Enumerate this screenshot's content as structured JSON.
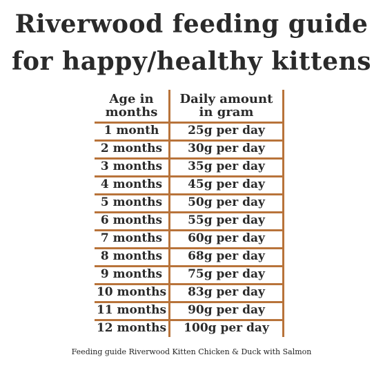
{
  "title": {
    "line1": "Riverwood feeding guide",
    "line2": "for happy/healthy kittens"
  },
  "table": {
    "header_age": "Age in\nmonths",
    "header_amount": "Daily amount\nin gram",
    "rows": [
      {
        "age": "1 month",
        "amount": "25g per day"
      },
      {
        "age": "2 months",
        "amount": "30g per day"
      },
      {
        "age": "3 months",
        "amount": "35g per day"
      },
      {
        "age": "4 months",
        "amount": "45g per day"
      },
      {
        "age": "5 months",
        "amount": "50g per day"
      },
      {
        "age": "6 months",
        "amount": "55g per day"
      },
      {
        "age": "7 months",
        "amount": "60g per day"
      },
      {
        "age": "8 months",
        "amount": "68g per day"
      },
      {
        "age": "9 months",
        "amount": "75g per day"
      },
      {
        "age": "10 months",
        "amount": "83g per day"
      },
      {
        "age": "11 months",
        "amount": "90g per day"
      },
      {
        "age": "12 months",
        "amount": "100g per day"
      }
    ]
  },
  "caption": "Feeding guide Riverwood Kitten  Chicken & Duck with Salmon",
  "colors": {
    "rule": "#b8733a",
    "text": "#2a2a2a"
  }
}
